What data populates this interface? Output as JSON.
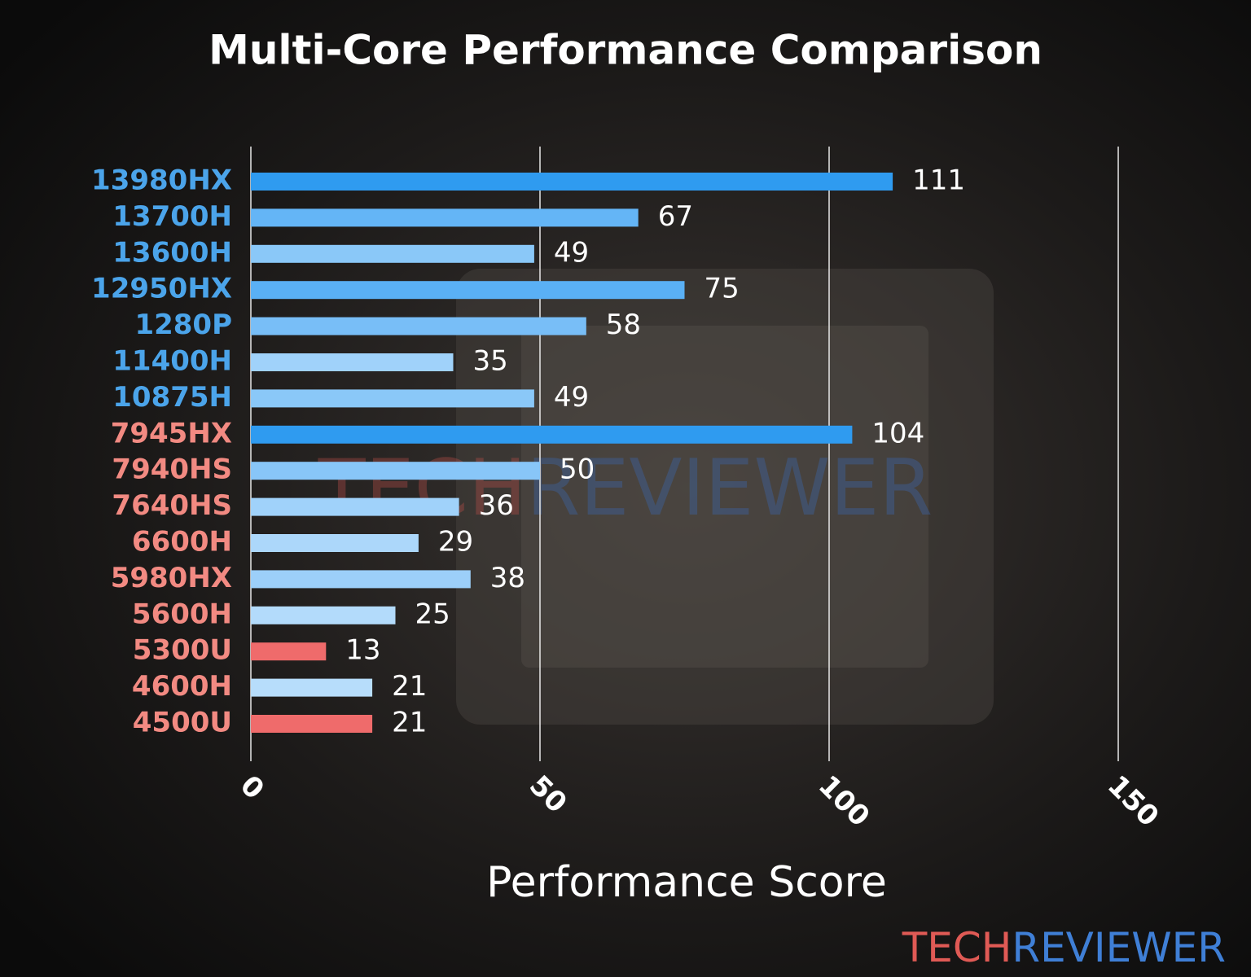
{
  "chart_data": {
    "type": "hbar",
    "title": "Multi-Core Performance Comparison",
    "x_label": "Performance Score",
    "categories": [
      "13980HX",
      "13700H",
      "13600H",
      "12950HX",
      "1280P",
      "11400H",
      "10875H",
      "7945HX",
      "7940HS",
      "7640HS",
      "6600H",
      "5980HX",
      "5600H",
      "5300U",
      "4600H",
      "4500U"
    ],
    "values": [
      111,
      67,
      49,
      75,
      58,
      35,
      49,
      104,
      50,
      36,
      29,
      38,
      25,
      13,
      21,
      21
    ],
    "colors": [
      "#2f9bf0",
      "#64b5f6",
      "#8ac8f8",
      "#5ab0f5",
      "#78bef7",
      "#a0d2fa",
      "#8ac8f8",
      "#2f9bf0",
      "#88c6f8",
      "#a0d2fa",
      "#acd7fa",
      "#9ccff9",
      "#b3dbfb",
      "#ef6b6b",
      "#b7ddfb",
      "#ef6b6b"
    ],
    "label_colors": [
      "#4ba4ea",
      "#4ba4ea",
      "#4ba4ea",
      "#4ba4ea",
      "#4ba4ea",
      "#4ba4ea",
      "#4ba4ea",
      "#f28a82",
      "#f28a82",
      "#f28a82",
      "#f28a82",
      "#f28a82",
      "#f28a82",
      "#f28a82",
      "#f28a82",
      "#f28a82"
    ],
    "xlim": [
      0,
      150
    ],
    "xticks": [
      0,
      50,
      100,
      150
    ],
    "grid": true
  },
  "watermark": [
    "TECH",
    "REVIEWER"
  ],
  "logo": [
    "TECH",
    "REVIEWER"
  ]
}
